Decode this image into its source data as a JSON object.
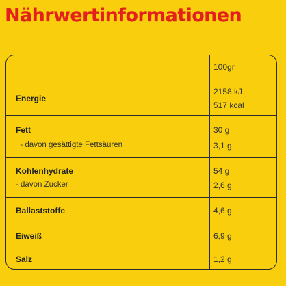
{
  "title": "Nährwertinformationen",
  "header": {
    "label": "",
    "value": "100gr"
  },
  "rows": [
    {
      "label": "Energie",
      "values": [
        "2158  kJ",
        "517  kcal"
      ]
    },
    {
      "label": "Fett",
      "sub_label": "  - davon gesättigte Fettsäuren",
      "values": [
        "30 g",
        "3,1 g"
      ]
    },
    {
      "label": "Kohlenhydrate",
      "sub_label": "- davon Zucker",
      "values": [
        "54 g",
        "2,6 g"
      ]
    },
    {
      "label": "Ballaststoffe",
      "values": [
        "4,6 g"
      ]
    },
    {
      "label": "Eiweiß",
      "values": [
        "6,9 g"
      ]
    },
    {
      "label": "Salz",
      "values": [
        "1,2 g"
      ]
    }
  ],
  "colors": {
    "background": "#f9cf0d",
    "title": "#e2211c",
    "lines": "#2b2b2b"
  }
}
